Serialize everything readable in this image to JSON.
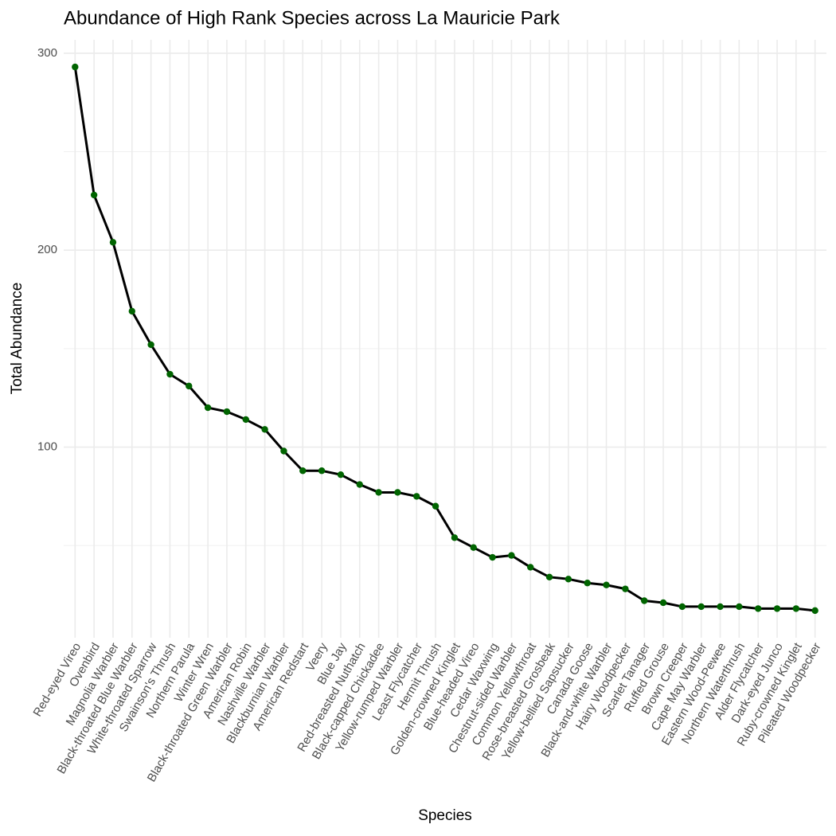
{
  "chart_data": {
    "type": "line",
    "title": "Abundance of High Rank Species across La Mauricie Park",
    "x_label": "Species",
    "y_label": "Total Abundance",
    "categories": [
      "Red-eyed Vireo",
      "Ovenbird",
      "Magnolia Warbler",
      "Black-throated Blue Warbler",
      "White-throated Sparrow",
      "Swainson's Thrush",
      "Northern Parula",
      "Winter Wren",
      "Black-throated Green Warbler",
      "American Robin",
      "Nashville Warbler",
      "Blackburnian Warbler",
      "American Redstart",
      "Veery",
      "Blue Jay",
      "Red-breasted Nuthatch",
      "Black-capped Chickadee",
      "Yellow-rumped Warbler",
      "Least Flycatcher",
      "Hermit Thrush",
      "Golden-crowned Kinglet",
      "Blue-headed Vireo",
      "Cedar Waxwing",
      "Chestnut-sided Warbler",
      "Common Yellowthroat",
      "Rose-breasted Grosbeak",
      "Yellow-bellied Sapsucker",
      "Canada Goose",
      "Black-and-white Warbler",
      "Hairy Woodpecker",
      "Scarlet Tanager",
      "Ruffed Grouse",
      "Brown Creeper",
      "Cape May Warbler",
      "Eastern Wood-Pewee",
      "Northern Waterthrush",
      "Alder Flycatcher",
      "Dark-eyed Junco",
      "Ruby-crowned Kinglet",
      "Pileated Woodpecker"
    ],
    "values": [
      293,
      228,
      204,
      169,
      152,
      137,
      131,
      120,
      118,
      114,
      109,
      98,
      88,
      88,
      86,
      81,
      77,
      77,
      75,
      70,
      54,
      49,
      44,
      45,
      39,
      34,
      33,
      31,
      30,
      28,
      22,
      21,
      19,
      19,
      19,
      19,
      18,
      18,
      18,
      17
    ],
    "line_color": "#000000",
    "point_color": "#006400",
    "ylim": [
      3.2,
      306.8
    ],
    "yticks": [
      100,
      200,
      300
    ],
    "minor_yticks": [
      50,
      150,
      250
    ],
    "grid": true
  }
}
